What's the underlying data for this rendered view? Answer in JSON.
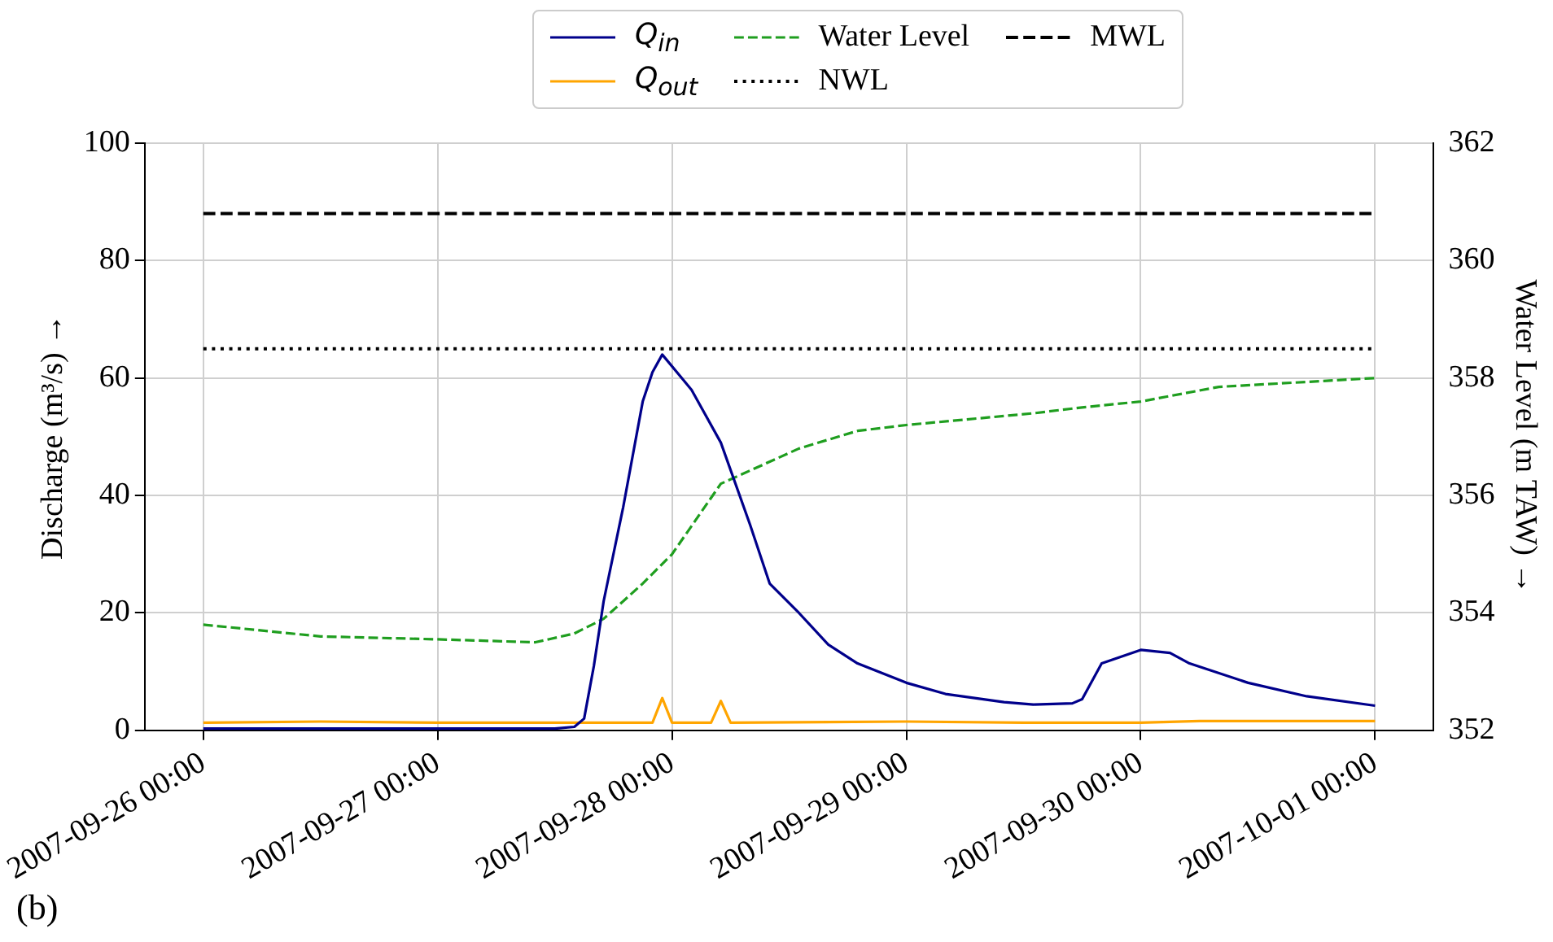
{
  "chart_data": {
    "type": "line",
    "ylabel": "Discharge (m³/s) →",
    "y2label": "Water Level (m TAW) →",
    "series": [
      {
        "name": "Q$_{in}$",
        "color": "#00008b",
        "line_style": "solid",
        "x": [
          "2007-09-26T00:00",
          "2007-09-27T00:00",
          "2007-09-27T12:00",
          "2007-09-27T14:00",
          "2007-09-27T15:00",
          "2007-09-27T16:00",
          "2007-09-27T17:00",
          "2007-09-27T19:00",
          "2007-09-27T21:00",
          "2007-09-27T22:00",
          "2007-09-27T23:00",
          "2007-09-28T01:00",
          "2007-09-28T02:00",
          "2007-09-28T05:00",
          "2007-09-28T08:00",
          "2007-09-28T10:00",
          "2007-09-28T13:00",
          "2007-09-28T16:00",
          "2007-09-28T19:00",
          "2007-09-29T00:00",
          "2007-09-29T04:00",
          "2007-09-29T10:00",
          "2007-09-29T13:00",
          "2007-09-29T17:00",
          "2007-09-29T18:00",
          "2007-09-29T20:00",
          "2007-09-30T00:00",
          "2007-09-30T03:00",
          "2007-09-30T05:00",
          "2007-09-30T11:00",
          "2007-09-30T17:00",
          "2007-10-01T00:00"
        ],
        "values": [
          0.3,
          0.3,
          0.3,
          0.6,
          2,
          11,
          22,
          38,
          56,
          61,
          64,
          60,
          58,
          49,
          35,
          25,
          20,
          14.6,
          11.4,
          8.1,
          6.2,
          4.8,
          4.4,
          4.6,
          5.3,
          11.4,
          13.7,
          13.2,
          11.4,
          8.1,
          5.8,
          4.2
        ]
      },
      {
        "name": "Q$_{out}$",
        "color": "#ffa500",
        "line_style": "solid",
        "x": [
          "2007-09-26T00:00",
          "2007-09-26T12:00",
          "2007-09-27T00:00",
          "2007-09-27T22:00",
          "2007-09-27T23:00",
          "2007-09-28T00:00",
          "2007-09-28T04:00",
          "2007-09-28T05:00",
          "2007-09-28T06:00",
          "2007-09-29T00:00",
          "2007-09-29T12:00",
          "2007-09-30T00:00",
          "2007-09-30T06:00",
          "2007-10-01T00:00"
        ],
        "values": [
          1.3,
          1.5,
          1.3,
          1.3,
          5.5,
          1.3,
          1.3,
          5,
          1.3,
          1.5,
          1.3,
          1.3,
          1.6,
          1.6
        ]
      },
      {
        "name": "Water Level",
        "color": "#1f9e1f",
        "line_style": "dashed",
        "axis": "y2",
        "x": [
          "2007-09-26T00:00",
          "2007-09-26T12:00",
          "2007-09-27T00:00",
          "2007-09-27T10:00",
          "2007-09-27T14:00",
          "2007-09-27T17:00",
          "2007-09-27T21:00",
          "2007-09-28T00:00",
          "2007-09-28T05:00",
          "2007-09-28T13:00",
          "2007-09-28T19:00",
          "2007-09-29T00:00",
          "2007-09-29T13:00",
          "2007-09-29T18:00",
          "2007-09-30T00:00",
          "2007-09-30T08:00",
          "2007-10-01T00:00"
        ],
        "values": [
          353.8,
          353.6,
          353.55,
          353.5,
          353.65,
          353.9,
          354.5,
          355.0,
          356.2,
          356.8,
          357.1,
          357.2,
          357.4,
          357.5,
          357.6,
          357.85,
          358.0
        ]
      }
    ],
    "ref_lines": [
      {
        "axis": "y2",
        "value": 358.5,
        "label": "NWL",
        "color": "#000000",
        "line_style": "dotted"
      },
      {
        "axis": "y2",
        "value": 360.8,
        "label": "MWL",
        "color": "#000000",
        "line_style": "dashed"
      }
    ],
    "xlim": [
      "2007-09-25T18:00",
      "2007-10-01T06:00"
    ],
    "xticks": [
      {
        "value": "2007-09-26T00:00",
        "label": "2007-09-26 00:00"
      },
      {
        "value": "2007-09-27T00:00",
        "label": "2007-09-27 00:00"
      },
      {
        "value": "2007-09-28T00:00",
        "label": "2007-09-28 00:00"
      },
      {
        "value": "2007-09-29T00:00",
        "label": "2007-09-29 00:00"
      },
      {
        "value": "2007-09-30T00:00",
        "label": "2007-09-30 00:00"
      },
      {
        "value": "2007-10-01T00:00",
        "label": "2007-10-01 00:00"
      }
    ],
    "ylim": [
      0,
      100
    ],
    "yticks": [
      0,
      20,
      40,
      60,
      80,
      100
    ],
    "y2lim": [
      352,
      362
    ],
    "y2ticks": [
      352,
      354,
      356,
      358,
      360,
      362
    ],
    "grid": true,
    "legend": "top",
    "marker": "none",
    "annotations": [
      "(b)"
    ]
  }
}
